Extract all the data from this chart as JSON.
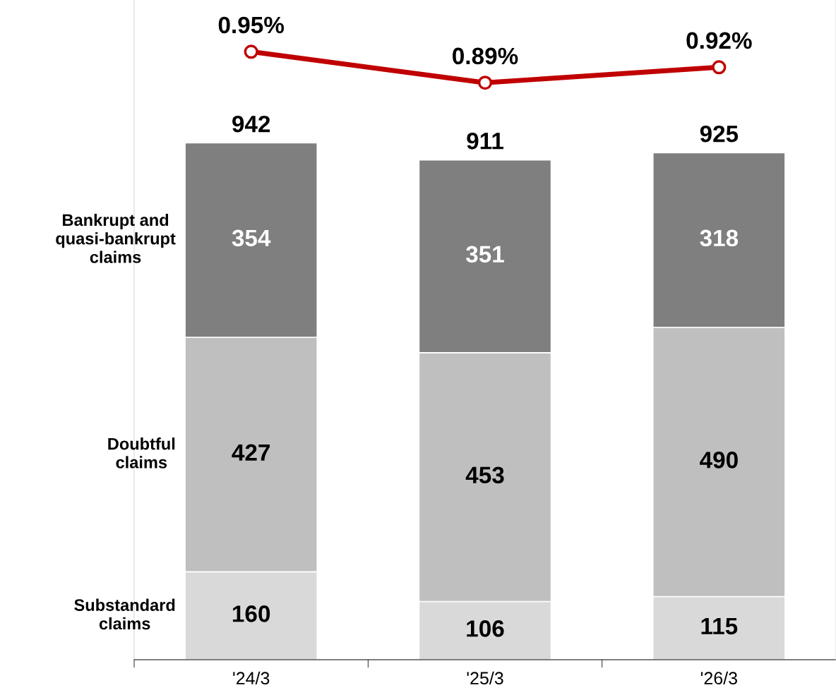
{
  "chart_data": {
    "type": "bar",
    "stacked": true,
    "categories": [
      "'24/3",
      "'25/3",
      "'26/3"
    ],
    "series": [
      {
        "name": "Substandard\nclaims",
        "color": "#d9d9d9",
        "values": [
          160,
          106,
          115
        ]
      },
      {
        "name": "Doubtful\nclaims",
        "color": "#bfbfbf",
        "values": [
          427,
          453,
          490
        ]
      },
      {
        "name": "Bankrupt and\nquasi-bankrupt\nclaims",
        "color": "#7f7f7f",
        "values": [
          354,
          351,
          318
        ]
      },
      {
        "type": "line",
        "axis": "y2",
        "color": "#c00000",
        "values": [
          0.95,
          0.89,
          0.92
        ],
        "value_labels": [
          "0.95%",
          "0.89%",
          "0.92%"
        ],
        "marker": "circle"
      }
    ],
    "totals": [
      "942",
      "911",
      "925"
    ],
    "data_labels": true,
    "ylim": [
      0,
      1201
    ],
    "y2lim": [
      -0.226,
      1.05
    ],
    "tick_labels": "x",
    "grid": false,
    "legend": false
  }
}
